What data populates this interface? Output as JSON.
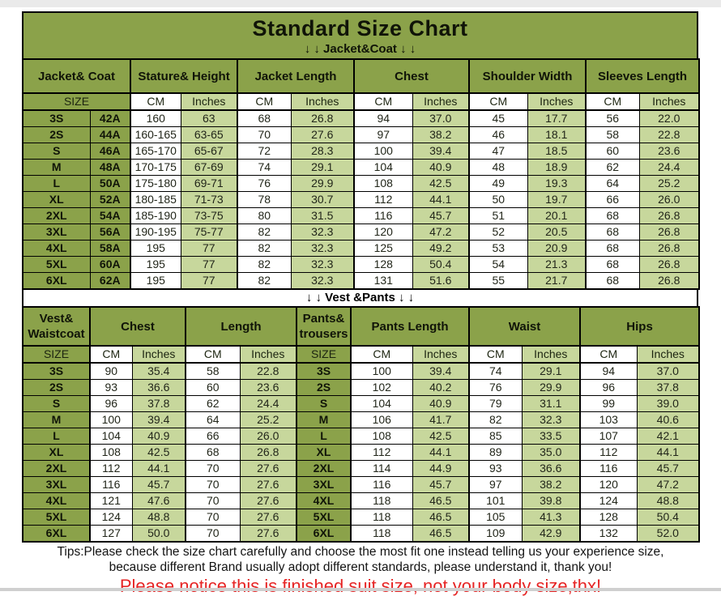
{
  "title": "Standard Size Chart",
  "jacket_section_label": "↓ ↓  Jacket&Coat ↓ ↓",
  "vest_section_label": "↓ ↓  Vest &Pants ↓ ↓",
  "colors": {
    "header_green": "#8ba24a",
    "light_green": "#c7d79c",
    "cell_white": "#ffffff",
    "border_black": "#000000",
    "notice_red": "#e62424"
  },
  "jacket_table": {
    "group_headers": {
      "size": "Jacket& Coat",
      "stature": "Stature& Height",
      "jacket_length": "Jacket Length",
      "chest": "Chest",
      "shoulder": "Shoulder Width",
      "sleeves": "Sleeves Length"
    },
    "unit_headers": {
      "size": "SIZE",
      "cm": "CM",
      "inches": "Inches"
    },
    "rows": [
      [
        "3S",
        "42A",
        "160",
        "63",
        "68",
        "26.8",
        "94",
        "37.0",
        "45",
        "17.7",
        "56",
        "22.0"
      ],
      [
        "2S",
        "44A",
        "160-165",
        "63-65",
        "70",
        "27.6",
        "97",
        "38.2",
        "46",
        "18.1",
        "58",
        "22.8"
      ],
      [
        "S",
        "46A",
        "165-170",
        "65-67",
        "72",
        "28.3",
        "100",
        "39.4",
        "47",
        "18.5",
        "60",
        "23.6"
      ],
      [
        "M",
        "48A",
        "170-175",
        "67-69",
        "74",
        "29.1",
        "104",
        "40.9",
        "48",
        "18.9",
        "62",
        "24.4"
      ],
      [
        "L",
        "50A",
        "175-180",
        "69-71",
        "76",
        "29.9",
        "108",
        "42.5",
        "49",
        "19.3",
        "64",
        "25.2"
      ],
      [
        "XL",
        "52A",
        "180-185",
        "71-73",
        "78",
        "30.7",
        "112",
        "44.1",
        "50",
        "19.7",
        "66",
        "26.0"
      ],
      [
        "2XL",
        "54A",
        "185-190",
        "73-75",
        "80",
        "31.5",
        "116",
        "45.7",
        "51",
        "20.1",
        "68",
        "26.8"
      ],
      [
        "3XL",
        "56A",
        "190-195",
        "75-77",
        "82",
        "32.3",
        "120",
        "47.2",
        "52",
        "20.5",
        "68",
        "26.8"
      ],
      [
        "4XL",
        "58A",
        "195",
        "77",
        "82",
        "32.3",
        "125",
        "49.2",
        "53",
        "20.9",
        "68",
        "26.8"
      ],
      [
        "5XL",
        "60A",
        "195",
        "77",
        "82",
        "32.3",
        "128",
        "50.4",
        "54",
        "21.3",
        "68",
        "26.8"
      ],
      [
        "6XL",
        "62A",
        "195",
        "77",
        "82",
        "32.3",
        "131",
        "51.6",
        "55",
        "21.7",
        "68",
        "26.8"
      ]
    ]
  },
  "vest_pants_table": {
    "group_headers": {
      "vest": "Vest& Waistcoat",
      "chest": "Chest",
      "length": "Length",
      "pants": "Pants& trousers",
      "pants_length": "Pants Length",
      "waist": "Waist",
      "hips": "Hips"
    },
    "unit_headers": {
      "size": "SIZE",
      "cm": "CM",
      "inches": "Inches"
    },
    "rows": [
      [
        "3S",
        "90",
        "35.4",
        "58",
        "22.8",
        "3S",
        "100",
        "39.4",
        "74",
        "29.1",
        "94",
        "37.0"
      ],
      [
        "2S",
        "93",
        "36.6",
        "60",
        "23.6",
        "2S",
        "102",
        "40.2",
        "76",
        "29.9",
        "96",
        "37.8"
      ],
      [
        "S",
        "96",
        "37.8",
        "62",
        "24.4",
        "S",
        "104",
        "40.9",
        "79",
        "31.1",
        "99",
        "39.0"
      ],
      [
        "M",
        "100",
        "39.4",
        "64",
        "25.2",
        "M",
        "106",
        "41.7",
        "82",
        "32.3",
        "103",
        "40.6"
      ],
      [
        "L",
        "104",
        "40.9",
        "66",
        "26.0",
        "L",
        "108",
        "42.5",
        "85",
        "33.5",
        "107",
        "42.1"
      ],
      [
        "XL",
        "108",
        "42.5",
        "68",
        "26.8",
        "XL",
        "112",
        "44.1",
        "89",
        "35.0",
        "112",
        "44.1"
      ],
      [
        "2XL",
        "112",
        "44.1",
        "70",
        "27.6",
        "2XL",
        "114",
        "44.9",
        "93",
        "36.6",
        "116",
        "45.7"
      ],
      [
        "3XL",
        "116",
        "45.7",
        "70",
        "27.6",
        "3XL",
        "116",
        "45.7",
        "97",
        "38.2",
        "120",
        "47.2"
      ],
      [
        "4XL",
        "121",
        "47.6",
        "70",
        "27.6",
        "4XL",
        "118",
        "46.5",
        "101",
        "39.8",
        "124",
        "48.8"
      ],
      [
        "5XL",
        "124",
        "48.8",
        "70",
        "27.6",
        "5XL",
        "118",
        "46.5",
        "105",
        "41.3",
        "128",
        "50.4"
      ],
      [
        "6XL",
        "127",
        "50.0",
        "70",
        "27.6",
        "6XL",
        "118",
        "46.5",
        "109",
        "42.9",
        "132",
        "52.0"
      ]
    ]
  },
  "footer": {
    "tips_line1": "Tips:Please check the size chart carefully and choose the most fit one instead telling us your experience size,",
    "tips_line2": "because different Brand usually adopt different standards, please understand it, thank you!",
    "notice": "Please notice this is finished suit size, not your body size,thx!"
  }
}
